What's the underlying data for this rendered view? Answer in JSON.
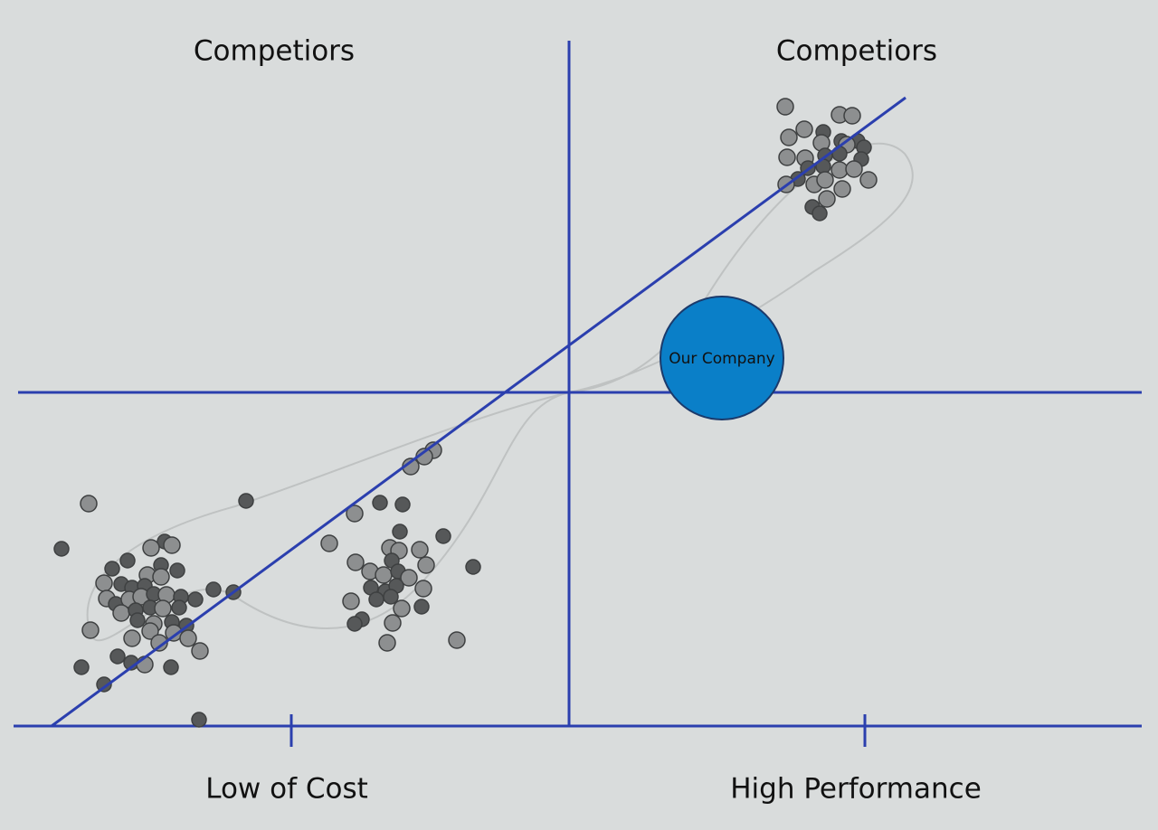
{
  "quadrant_labels": {
    "top_left": "Competiors",
    "top_right": "Competiors"
  },
  "axis_labels": {
    "bottom_left": "Low of Cost",
    "bottom_right": "High Performance"
  },
  "highlight": {
    "label": "Our Company"
  }
}
